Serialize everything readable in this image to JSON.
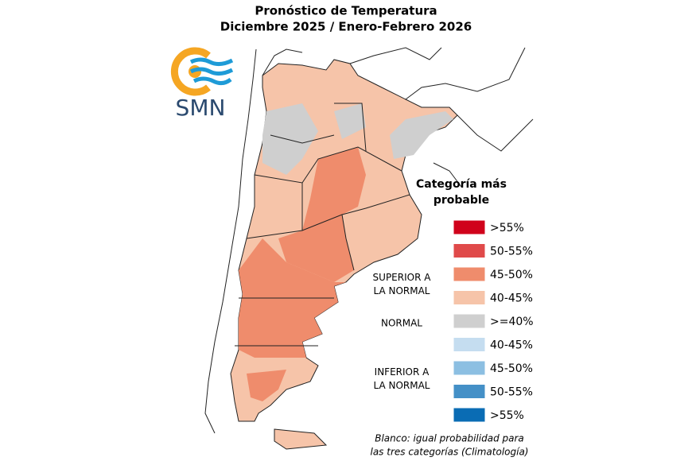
{
  "header": {
    "title_lines": [
      "Pronóstico de Temperatura",
      "Diciembre 2025 / Enero-Febrero 2026"
    ]
  },
  "logo": {
    "text": "SMN"
  },
  "legend": {
    "title_lines": [
      "Categoría más",
      "probable"
    ],
    "items": [
      {
        "label": ">55%",
        "color": "#d0021b"
      },
      {
        "label": "50-55%",
        "color": "#e04a4a"
      },
      {
        "label": "45-50%",
        "color": "#ef8c6c"
      },
      {
        "label": "40-45%",
        "color": "#f6c4a9"
      },
      {
        "label": ">=40%",
        "color": "#cfcfcf"
      },
      {
        "label": "40-45%",
        "color": "#c5ddf0"
      },
      {
        "label": "45-50%",
        "color": "#8cbfe2"
      },
      {
        "label": "50-55%",
        "color": "#4490c7"
      },
      {
        "label": ">55%",
        "color": "#0a6cb4"
      }
    ],
    "groups": [
      {
        "label_lines": [
          "SUPERIOR A",
          "LA NORMAL"
        ]
      },
      {
        "label_lines": [
          "NORMAL"
        ]
      },
      {
        "label_lines": [
          "INFERIOR A",
          "LA NORMAL"
        ]
      }
    ]
  },
  "footnote": {
    "lines": [
      "Blanco: igual probabilidad para",
      "las tres categorías (Climatología)"
    ]
  }
}
